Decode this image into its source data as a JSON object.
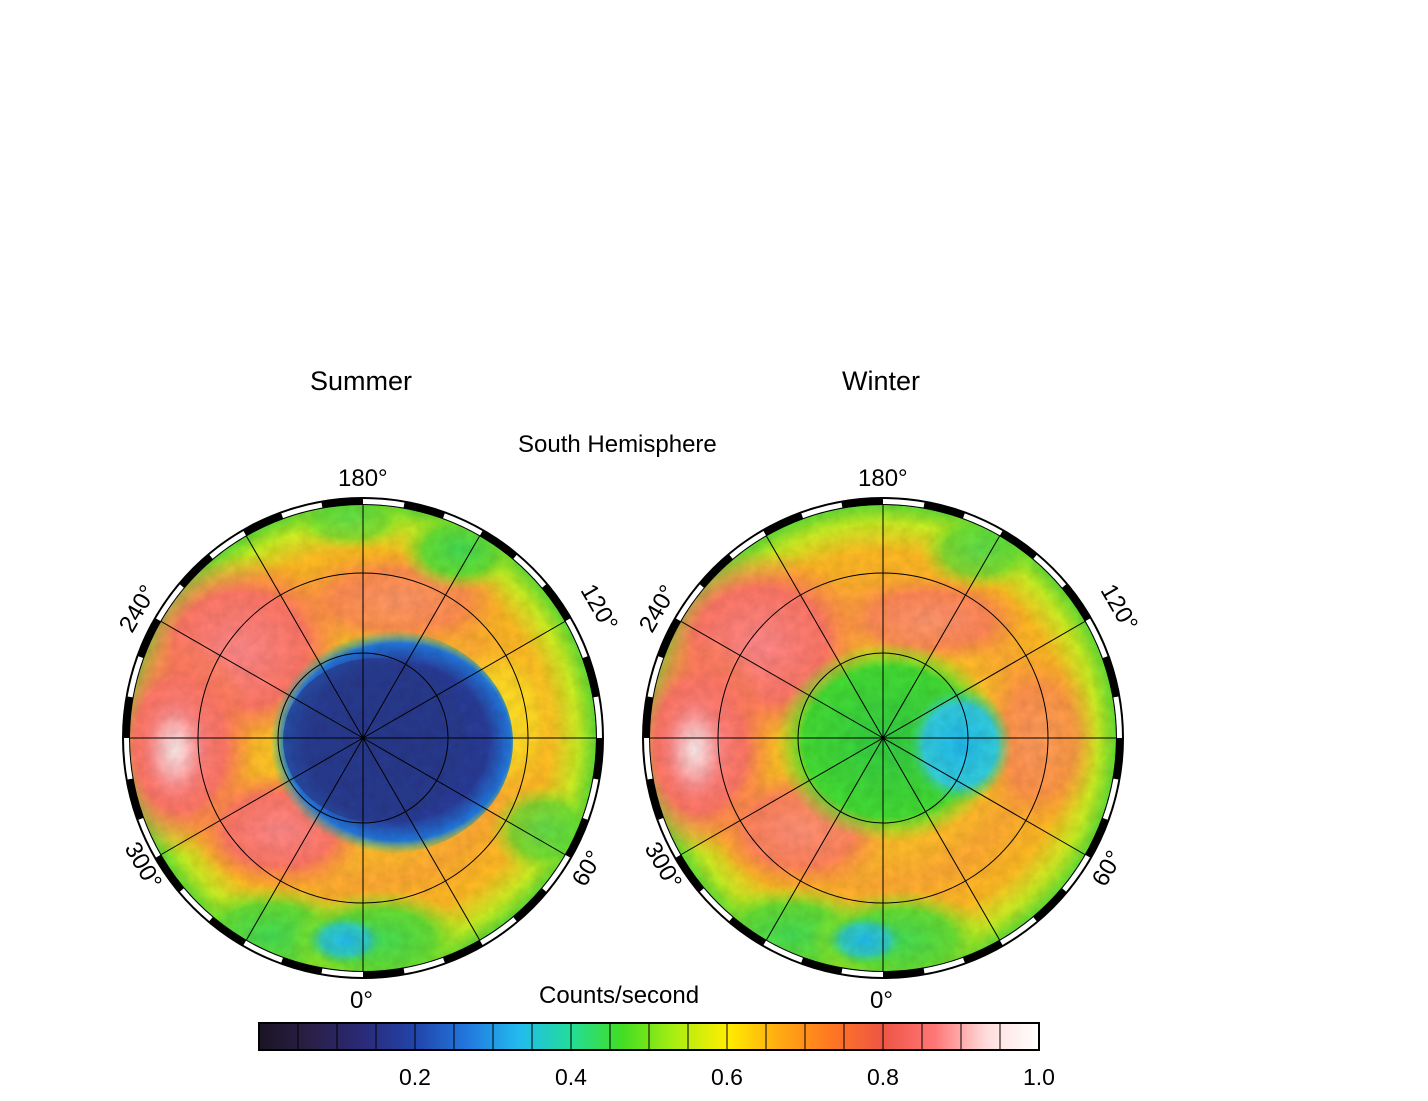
{
  "hemisphere_label": "South Hemisphere",
  "maps": [
    {
      "title": "Summer",
      "longitude_labels": {
        "top": "180°",
        "bottom": "0°",
        "upper_left": "240°",
        "upper_right": "120°",
        "lower_left": "300°",
        "lower_right": "60°"
      }
    },
    {
      "title": "Winter",
      "longitude_labels": {
        "top": "180°",
        "bottom": "0°",
        "upper_left": "240°",
        "upper_right": "120°",
        "lower_left": "300°",
        "lower_right": "60°"
      }
    }
  ],
  "colorbar": {
    "label": "Counts/second",
    "min": 0.0,
    "max": 1.0,
    "ticks": [
      "0.2",
      "0.4",
      "0.6",
      "0.8",
      "1.0"
    ],
    "stops": [
      "#1a1424",
      "#2a2048",
      "#2a2a78",
      "#2244aa",
      "#2277dd",
      "#22bbee",
      "#22dd99",
      "#44dd22",
      "#aaee11",
      "#ffee00",
      "#ffaa11",
      "#ff7722",
      "#ee5544",
      "#ff7777",
      "#ffdddd",
      "#ffffff"
    ]
  },
  "colors": {
    "polar_cap_summer": "#2a3a90",
    "polar_cap_winter": "#22cc44",
    "midlatitude": "#ffaa22",
    "high_value": "#ff7766",
    "low_latitude": "#66dd33"
  }
}
